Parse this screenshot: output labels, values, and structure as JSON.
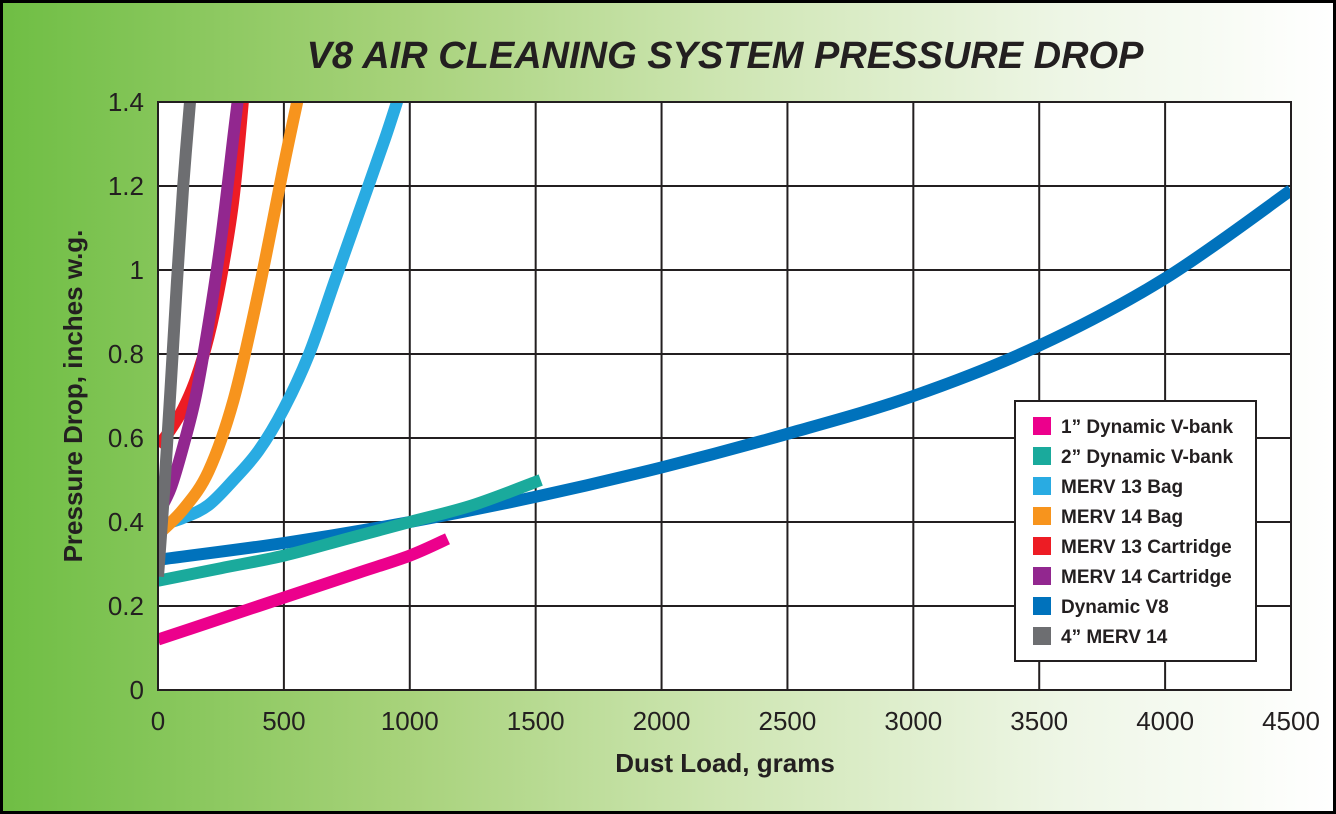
{
  "chart_data": {
    "type": "line",
    "title": "V8 AIR CLEANING SYSTEM PRESSURE DROP",
    "xlabel": "Dust Load, grams",
    "ylabel": "Pressure Drop, inches w.g.",
    "xlim": [
      0,
      4500
    ],
    "ylim": [
      0,
      1.4
    ],
    "x_ticks": [
      0,
      500,
      1000,
      1500,
      2000,
      2500,
      3000,
      3500,
      4000,
      4500
    ],
    "y_ticks": [
      0,
      0.2,
      0.4,
      0.6,
      0.8,
      1,
      1.2,
      1.4
    ],
    "x_tick_labels": [
      "0",
      "500",
      "1000",
      "1500",
      "2000",
      "2500",
      "3000",
      "3500",
      "4000",
      "4500"
    ],
    "y_tick_labels": [
      "0",
      "0.2",
      "0.4",
      "0.6",
      "0.8",
      "1",
      "1.2",
      "1.4"
    ],
    "grid": true,
    "legend_position": "right",
    "series": [
      {
        "name": "1” Dynamic V-bank",
        "color": "#ec008c",
        "x": [
          0,
          200,
          400,
          600,
          800,
          1000,
          1150
        ],
        "y": [
          0.12,
          0.16,
          0.2,
          0.24,
          0.28,
          0.32,
          0.36
        ]
      },
      {
        "name": "2” Dynamic V-bank",
        "color": "#1aaa9c",
        "x": [
          0,
          250,
          500,
          750,
          1000,
          1250,
          1520
        ],
        "y": [
          0.26,
          0.29,
          0.32,
          0.36,
          0.4,
          0.44,
          0.5
        ]
      },
      {
        "name": "MERV 13 Bag",
        "color": "#29abe2",
        "x": [
          0,
          100,
          200,
          300,
          400,
          500,
          600,
          700,
          800,
          900,
          960
        ],
        "y": [
          0.39,
          0.41,
          0.44,
          0.5,
          0.57,
          0.67,
          0.8,
          0.97,
          1.14,
          1.31,
          1.42
        ]
      },
      {
        "name": "MERV 14 Bag",
        "color": "#f7941d",
        "x": [
          0,
          100,
          200,
          300,
          400,
          500,
          560
        ],
        "y": [
          0.37,
          0.43,
          0.52,
          0.69,
          0.95,
          1.25,
          1.42
        ]
      },
      {
        "name": "MERV 13 Cartridge",
        "color": "#ed1c24",
        "x": [
          0,
          50,
          100,
          150,
          200,
          250,
          300,
          340
        ],
        "y": [
          0.58,
          0.62,
          0.67,
          0.74,
          0.84,
          0.98,
          1.17,
          1.42
        ]
      },
      {
        "name": "MERV 14 Cartridge",
        "color": "#92278f",
        "x": [
          0,
          50,
          100,
          150,
          200,
          250,
          300,
          320
        ],
        "y": [
          0.42,
          0.48,
          0.58,
          0.7,
          0.87,
          1.07,
          1.32,
          1.42
        ]
      },
      {
        "name": "Dynamic V8",
        "color": "#0072bc",
        "x": [
          0,
          500,
          1000,
          1500,
          2000,
          2500,
          3000,
          3500,
          4000,
          4500
        ],
        "y": [
          0.31,
          0.35,
          0.4,
          0.46,
          0.53,
          0.61,
          0.7,
          0.82,
          0.98,
          1.19
        ]
      },
      {
        "name": "4” MERV 14",
        "color": "#6d6e71",
        "x": [
          0,
          25,
          50,
          75,
          100,
          130
        ],
        "y": [
          0.27,
          0.48,
          0.72,
          0.97,
          1.2,
          1.42
        ]
      }
    ]
  }
}
